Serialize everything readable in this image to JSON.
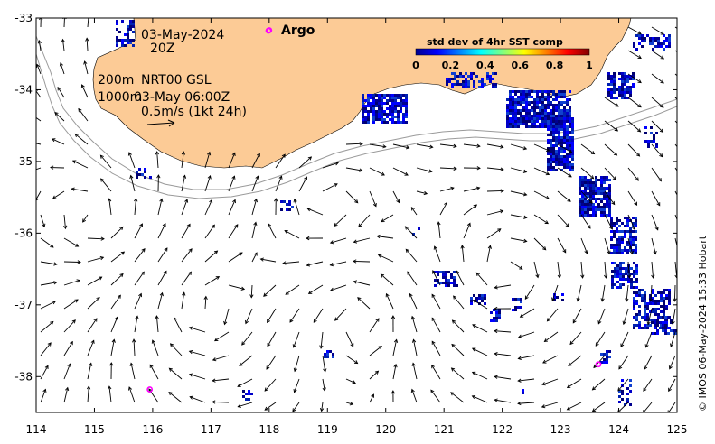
{
  "map": {
    "date_label": "03-May-2024",
    "time_label": "20Z",
    "argo_label": "Argo",
    "line_200m": "200m",
    "product_label": "NRT00 GSL",
    "line_1000m": "1000m",
    "analysis_label": "03-May 06:00Z",
    "scale_label": "0.5m/s (1kt 24h)",
    "credit": "© IMOS 06-May-2024 15:33 Hobart",
    "lon_ticks": [
      "114",
      "115",
      "116",
      "117",
      "118",
      "119",
      "120",
      "121",
      "122",
      "123",
      "124",
      "125"
    ],
    "lat_ticks": [
      "-33",
      "-34",
      "-35",
      "-36",
      "-37",
      "-38"
    ],
    "lon_range": [
      114,
      125
    ],
    "lat_range": [
      -38.5,
      -33
    ],
    "land_color": "#fccb96",
    "argo_color": "#ff00ff",
    "argo_floats": [
      {
        "lon": 118.0,
        "lat": -33.17
      },
      {
        "lon": 115.95,
        "lat": -38.18
      },
      {
        "lon": 123.65,
        "lat": -37.83
      }
    ]
  },
  "legend": {
    "title": "std dev of 4hr SST comp",
    "ticks": [
      "0",
      "0.2",
      "0.4",
      "0.6",
      "0.8",
      "1"
    ],
    "colormap": [
      "#00008f",
      "#0000ff",
      "#0080ff",
      "#00ffff",
      "#80ff80",
      "#ffff00",
      "#ff8000",
      "#ff0000",
      "#800000"
    ]
  }
}
